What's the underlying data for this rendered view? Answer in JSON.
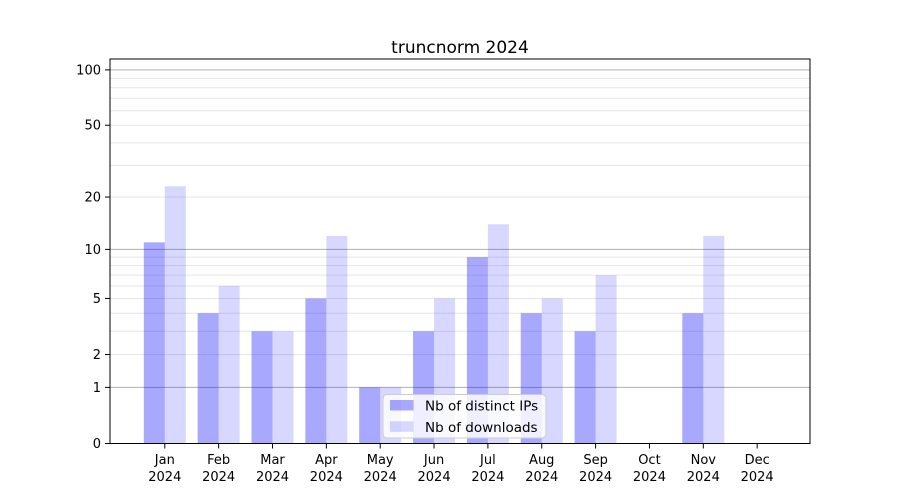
{
  "chart_data": {
    "type": "bar",
    "title": "truncnorm 2024",
    "x_months": [
      "Jan",
      "Feb",
      "Mar",
      "Apr",
      "May",
      "Jun",
      "Jul",
      "Aug",
      "Sep",
      "Oct",
      "Nov",
      "Dec"
    ],
    "x_year": "2024",
    "series": [
      {
        "name": "Nb of distinct IPs",
        "fill": "rgba(0,0,255,0.34)",
        "color": "#a8a8f6",
        "values": [
          11,
          4,
          3,
          5,
          1,
          3,
          9,
          4,
          3,
          0,
          4,
          0
        ]
      },
      {
        "name": "Nb of downloads",
        "fill": "rgba(0,0,255,0.155)",
        "color": "#d8d8f9",
        "values": [
          23,
          6,
          3,
          12,
          1,
          5,
          14,
          5,
          7,
          0,
          12,
          0
        ]
      }
    ],
    "y_axis": {
      "scale": "log1p",
      "tick_values": [
        0,
        1,
        2,
        5,
        10,
        20,
        50,
        100
      ],
      "major_grid_values": [
        1,
        10,
        100
      ],
      "minor_grid_values": [
        2,
        3,
        4,
        5,
        6,
        7,
        8,
        9,
        20,
        30,
        40,
        50,
        60,
        70,
        80,
        90
      ],
      "ylim": [
        0,
        115
      ]
    },
    "grid": true,
    "legend_position": "lower-center-inside",
    "colors": {
      "major_grid": "#b0b0b0",
      "minor_grid": "#e6e6e6",
      "axis": "#000000",
      "background": "#ffffff"
    }
  }
}
